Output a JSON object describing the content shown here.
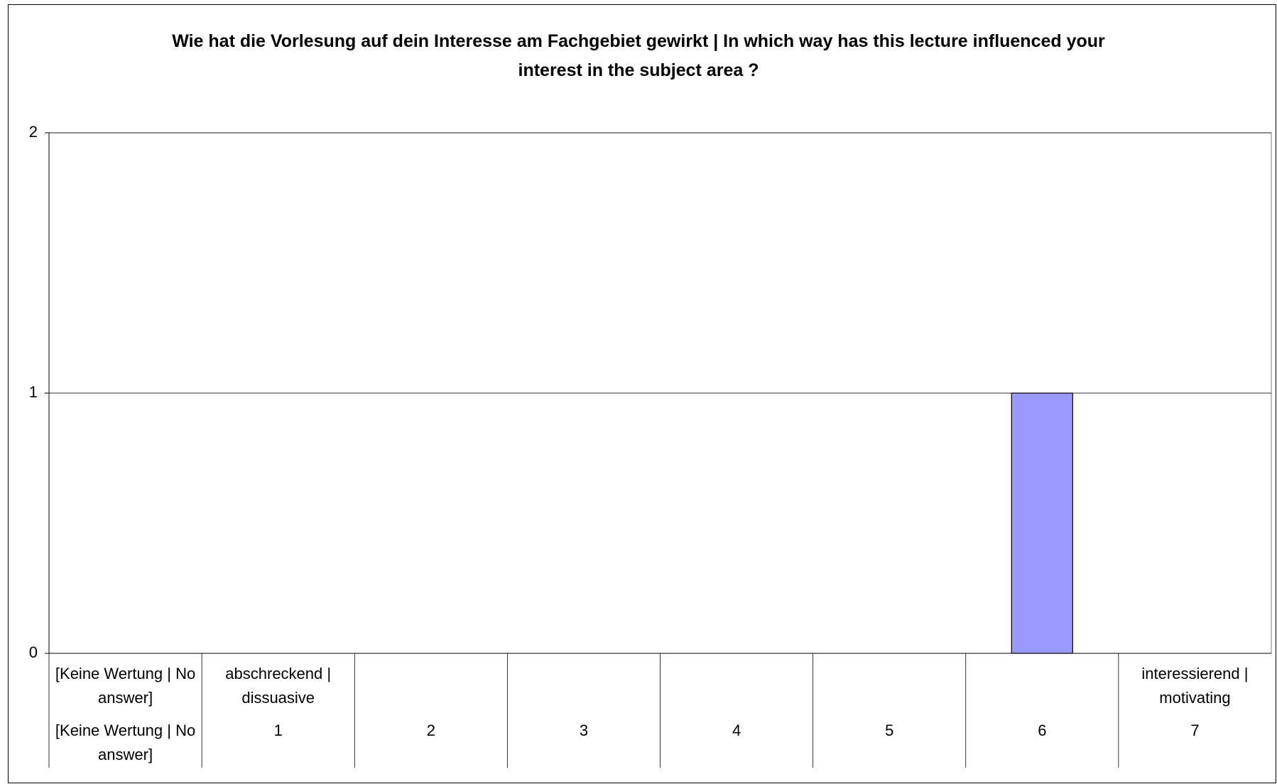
{
  "chart_data": {
    "type": "bar",
    "title": "Wie hat die Vorlesung auf dein Interesse am Fachgebiet gewirkt | In which way has this lecture influenced your interest in the subject area ?",
    "categories": [
      "[Keine Wertung | No answer]",
      "1",
      "2",
      "3",
      "4",
      "5",
      "6",
      "7"
    ],
    "category_descriptions": [
      "[Keine Wertung | No answer]",
      "abschreckend | dissuasive",
      null,
      null,
      null,
      null,
      null,
      "interessierend | motivating"
    ],
    "values": [
      0,
      0,
      0,
      0,
      0,
      0,
      1,
      0
    ],
    "color": "#9999ff",
    "ylim": [
      0,
      2
    ],
    "yticks": [
      0,
      1,
      2
    ],
    "grid": true
  }
}
